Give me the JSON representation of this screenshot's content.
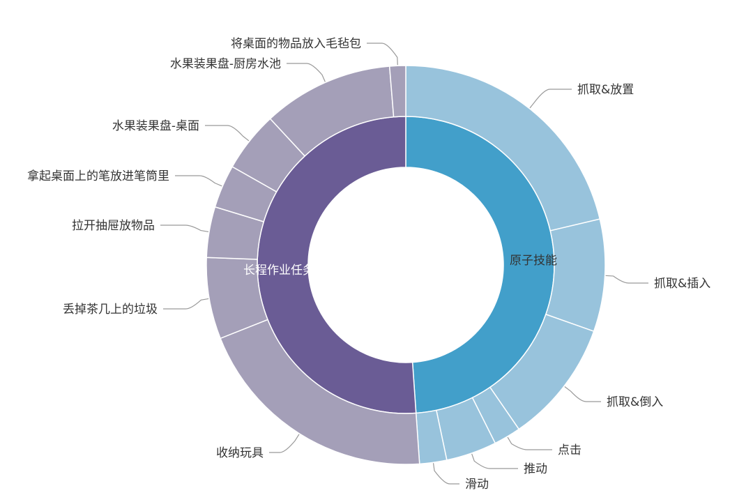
{
  "chart_data": {
    "type": "sunburst",
    "title": "",
    "unit": "percent of total (estimated from arc angles)",
    "inner": [
      {
        "name": "原子技能",
        "value": 48.9,
        "color": "#429fca",
        "children": [
          {
            "name": "抓取&放置",
            "value": 21.3
          },
          {
            "name": "抓取&插入",
            "value": 9.1
          },
          {
            "name": "抓取&倒入",
            "value": 10.0
          },
          {
            "name": "点击",
            "value": 2.2
          },
          {
            "name": "推动",
            "value": 4.1
          },
          {
            "name": "滑动",
            "value": 2.2
          }
        ]
      },
      {
        "name": "长程作业任务",
        "value": 51.1,
        "color": "#6a5c95",
        "children": [
          {
            "name": "收纳玩具",
            "value": 20.1
          },
          {
            "name": "丢掉茶几上的垃圾",
            "value": 6.6
          },
          {
            "name": "拉开抽屉放物品",
            "value": 4.1
          },
          {
            "name": "拿起桌面上的笔放进笔筒里",
            "value": 3.5
          },
          {
            "name": "水果装果盘-桌面",
            "value": 4.9
          },
          {
            "name": "水果装果盘-厨房水池",
            "value": 10.6
          },
          {
            "name": "将桌面的物品放入毛毡包",
            "value": 1.3
          }
        ]
      }
    ],
    "outer_colors": {
      "原子技能": "#98c3dc",
      "长程作业任务": "#a49fb8"
    }
  }
}
